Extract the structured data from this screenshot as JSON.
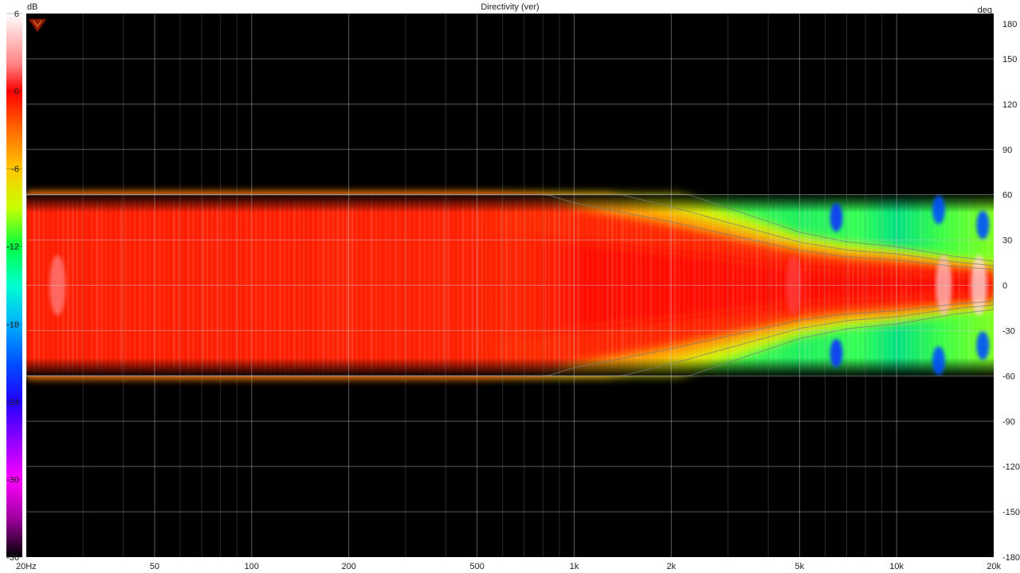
{
  "chart_data": {
    "type": "heatmap",
    "title": "Directivity (ver)",
    "colorbar_unit": "dB",
    "yaxis_unit": "deg",
    "x_scale": "log",
    "xlim_hz": [
      20,
      20000
    ],
    "ylim_deg": [
      -180,
      180
    ],
    "x_ticks": [
      {
        "value": 20,
        "label": "20Hz"
      },
      {
        "value": 50,
        "label": "50"
      },
      {
        "value": 100,
        "label": "100"
      },
      {
        "value": 200,
        "label": "200"
      },
      {
        "value": 500,
        "label": "500"
      },
      {
        "value": 1000,
        "label": "1k"
      },
      {
        "value": 2000,
        "label": "2k"
      },
      {
        "value": 5000,
        "label": "5k"
      },
      {
        "value": 10000,
        "label": "10k"
      },
      {
        "value": 20000,
        "label": "20k"
      }
    ],
    "y_ticks": [
      {
        "value": 180,
        "label": "180"
      },
      {
        "value": 150,
        "label": "150"
      },
      {
        "value": 120,
        "label": "120"
      },
      {
        "value": 90,
        "label": "90"
      },
      {
        "value": 60,
        "label": "60"
      },
      {
        "value": 30,
        "label": "30"
      },
      {
        "value": 0,
        "label": "0"
      },
      {
        "value": -30,
        "label": "-30"
      },
      {
        "value": -60,
        "label": "-60"
      },
      {
        "value": -90,
        "label": "-90"
      },
      {
        "value": -120,
        "label": "-120"
      },
      {
        "value": -150,
        "label": "-150"
      },
      {
        "value": -180,
        "label": "-180"
      }
    ],
    "colorbar_ticks": [
      {
        "value": 6,
        "label": "6"
      },
      {
        "value": 0,
        "label": "0"
      },
      {
        "value": -6,
        "label": "-6"
      },
      {
        "value": -12,
        "label": "-12"
      },
      {
        "value": -18,
        "label": "-18"
      },
      {
        "value": -24,
        "label": "-24"
      },
      {
        "value": -30,
        "label": "-30"
      },
      {
        "value": -36,
        "label": "-36"
      }
    ],
    "colorbar_range_db": [
      -36,
      6
    ],
    "measured_angle_range_deg": [
      -60,
      60
    ],
    "background_color": "#000000",
    "grid": true,
    "colorbar_stops": [
      {
        "db": 6,
        "color": "#ffffff"
      },
      {
        "db": 2,
        "color": "#ff8080"
      },
      {
        "db": 0,
        "color": "#ff0000"
      },
      {
        "db": -3,
        "color": "#ff6a00"
      },
      {
        "db": -6,
        "color": "#ffc800"
      },
      {
        "db": -9,
        "color": "#c8ff00"
      },
      {
        "db": -12,
        "color": "#00ff40"
      },
      {
        "db": -15,
        "color": "#00ffd0"
      },
      {
        "db": -18,
        "color": "#00b0ff"
      },
      {
        "db": -21,
        "color": "#0050ff"
      },
      {
        "db": -24,
        "color": "#2000ff"
      },
      {
        "db": -27,
        "color": "#9000ff"
      },
      {
        "db": -30,
        "color": "#ff00ff"
      },
      {
        "db": -33,
        "color": "#a000a0"
      },
      {
        "db": -36,
        "color": "#000000"
      }
    ],
    "beam_profile": [
      {
        "freq_hz": 20,
        "half_width_deg": 60
      },
      {
        "freq_hz": 500,
        "half_width_deg": 60
      },
      {
        "freq_hz": 800,
        "half_width_deg": 58
      },
      {
        "freq_hz": 1000,
        "half_width_deg": 52
      },
      {
        "freq_hz": 2000,
        "half_width_deg": 40
      },
      {
        "freq_hz": 3000,
        "half_width_deg": 32
      },
      {
        "freq_hz": 5000,
        "half_width_deg": 22
      },
      {
        "freq_hz": 7000,
        "half_width_deg": 18
      },
      {
        "freq_hz": 10000,
        "half_width_deg": 16
      },
      {
        "freq_hz": 15000,
        "half_width_deg": 12
      },
      {
        "freq_hz": 20000,
        "half_width_deg": 10
      }
    ],
    "hot_spots": [
      {
        "freq_hz": 25,
        "angle_deg": 0,
        "db": 2
      },
      {
        "freq_hz": 4800,
        "angle_deg": 0,
        "db": 1
      },
      {
        "freq_hz": 14000,
        "angle_deg": 0,
        "db": 4
      },
      {
        "freq_hz": 18000,
        "angle_deg": 0,
        "db": 5
      }
    ],
    "cold_spots": [
      {
        "freq_hz": 6500,
        "angle_deg": 45,
        "db": -22
      },
      {
        "freq_hz": 6500,
        "angle_deg": -45,
        "db": -22
      },
      {
        "freq_hz": 13500,
        "angle_deg": 50,
        "db": -21
      },
      {
        "freq_hz": 13500,
        "angle_deg": -50,
        "db": -21
      },
      {
        "freq_hz": 18500,
        "angle_deg": 40,
        "db": -21
      },
      {
        "freq_hz": 18500,
        "angle_deg": -40,
        "db": -21
      }
    ]
  }
}
